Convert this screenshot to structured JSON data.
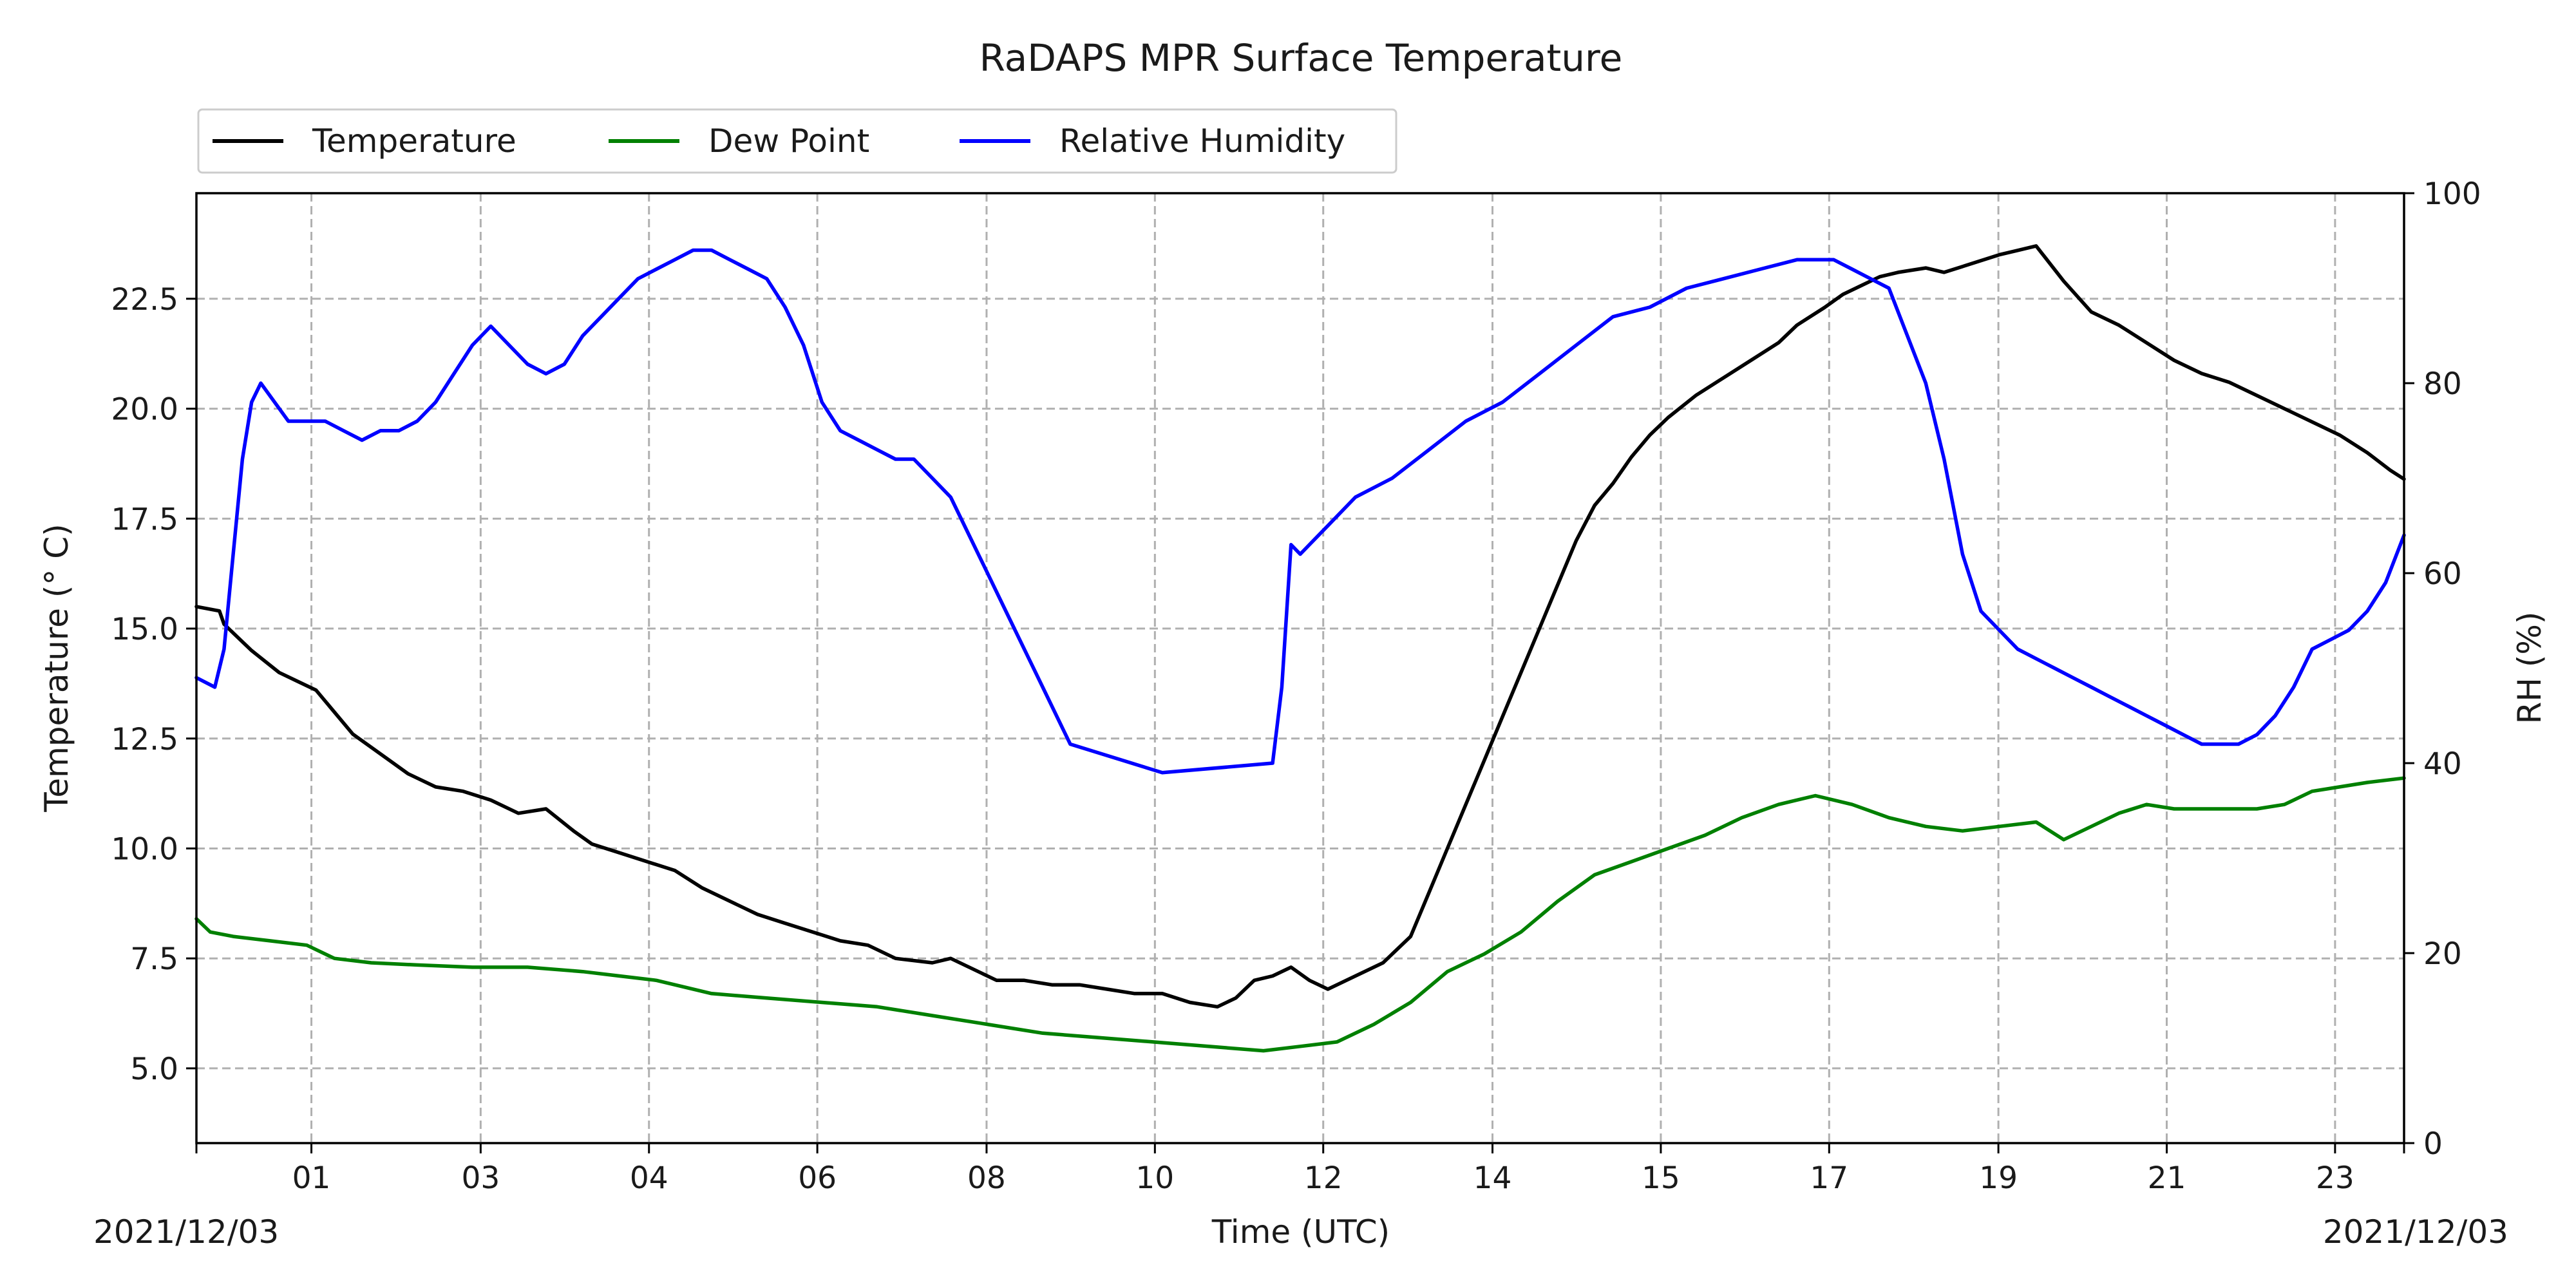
{
  "chart_data": {
    "type": "line",
    "title": "RaDAPS MPR Surface Temperature",
    "xlabel": "Time (UTC)",
    "ylabel_left": "Temperature ($^\\circ$C)",
    "ylabel_left_display": "Temperature (° C)",
    "ylabel_right": "RH (%)",
    "x_start_label": "2021/12/03",
    "x_end_label": "2021/12/03",
    "xlim": [
      0,
      24
    ],
    "ylim_left": [
      3.3,
      24.9
    ],
    "ylim_right": [
      0,
      100
    ],
    "x_ticks": [
      {
        "pos": 1.25,
        "label": "01"
      },
      {
        "pos": 3.09,
        "label": "03"
      },
      {
        "pos": 4.92,
        "label": "04"
      },
      {
        "pos": 6.75,
        "label": "06"
      },
      {
        "pos": 8.59,
        "label": "08"
      },
      {
        "pos": 10.42,
        "label": "10"
      },
      {
        "pos": 12.25,
        "label": "12"
      },
      {
        "pos": 14.09,
        "label": "14"
      },
      {
        "pos": 15.92,
        "label": "15"
      },
      {
        "pos": 17.75,
        "label": "17"
      },
      {
        "pos": 19.59,
        "label": "19"
      },
      {
        "pos": 21.42,
        "label": "21"
      },
      {
        "pos": 23.25,
        "label": "23"
      }
    ],
    "y_left_ticks": [
      "5.0",
      "7.5",
      "10.0",
      "12.5",
      "15.0",
      "17.5",
      "20.0",
      "22.5"
    ],
    "y_right_ticks": [
      "0",
      "20",
      "40",
      "60",
      "80",
      "100"
    ],
    "grid": true,
    "legend_position": "top-left, above plot",
    "series": [
      {
        "name": "Temperature",
        "axis": "left",
        "color": "#000000",
        "x": [
          0.0,
          0.25,
          0.3,
          0.4,
          0.6,
          0.9,
          1.1,
          1.3,
          1.5,
          1.7,
          1.9,
          2.1,
          2.3,
          2.6,
          2.9,
          3.2,
          3.5,
          3.8,
          4.1,
          4.3,
          4.6,
          4.9,
          5.2,
          5.5,
          5.8,
          6.1,
          6.4,
          6.7,
          7.0,
          7.3,
          7.6,
          8.0,
          8.2,
          8.5,
          8.7,
          9.0,
          9.3,
          9.6,
          9.9,
          10.2,
          10.5,
          10.8,
          11.1,
          11.3,
          11.5,
          11.7,
          11.9,
          12.1,
          12.3,
          12.6,
          12.9,
          13.2,
          13.4,
          13.6,
          13.8,
          14.0,
          14.2,
          14.4,
          14.6,
          14.8,
          15.0,
          15.2,
          15.4,
          15.6,
          15.8,
          16.0,
          16.3,
          16.6,
          16.9,
          17.2,
          17.4,
          17.7,
          17.9,
          18.1,
          18.3,
          18.5,
          18.8,
          19.0,
          19.3,
          19.6,
          19.8,
          20.0,
          20.3,
          20.6,
          20.9,
          21.2,
          21.5,
          21.8,
          22.1,
          22.4,
          22.7,
          23.0,
          23.3,
          23.6,
          23.85,
          24.0
        ],
        "y": [
          15.5,
          15.4,
          15.1,
          14.9,
          14.5,
          14.0,
          13.8,
          13.6,
          13.1,
          12.6,
          12.3,
          12.0,
          11.7,
          11.4,
          11.3,
          11.1,
          10.8,
          10.9,
          10.4,
          10.1,
          9.9,
          9.7,
          9.5,
          9.1,
          8.8,
          8.5,
          8.3,
          8.1,
          7.9,
          7.8,
          7.5,
          7.4,
          7.5,
          7.2,
          7.0,
          7.0,
          6.9,
          6.9,
          6.8,
          6.7,
          6.7,
          6.5,
          6.4,
          6.6,
          7.0,
          7.1,
          7.3,
          7.0,
          6.8,
          7.1,
          7.4,
          8.0,
          9.0,
          10.0,
          11.0,
          12.0,
          13.0,
          14.0,
          15.0,
          16.0,
          17.0,
          17.8,
          18.3,
          18.9,
          19.4,
          19.8,
          20.3,
          20.7,
          21.1,
          21.5,
          21.9,
          22.3,
          22.6,
          22.8,
          23.0,
          23.1,
          23.2,
          23.1,
          23.3,
          23.5,
          23.6,
          23.7,
          22.9,
          22.2,
          21.9,
          21.5,
          21.1,
          20.8,
          20.6,
          20.3,
          20.0,
          19.7,
          19.4,
          19.0,
          18.6,
          18.4
        ]
      },
      {
        "name": "Dew Point",
        "axis": "left",
        "color": "#008000",
        "x": [
          0.0,
          0.15,
          0.4,
          0.8,
          1.2,
          1.5,
          1.9,
          2.4,
          3.0,
          3.6,
          4.2,
          4.6,
          5.0,
          5.6,
          6.2,
          6.8,
          7.4,
          8.0,
          8.6,
          9.2,
          9.8,
          10.4,
          11.0,
          11.6,
          12.0,
          12.4,
          12.8,
          13.2,
          13.6,
          14.0,
          14.4,
          14.8,
          15.2,
          15.6,
          16.0,
          16.4,
          16.8,
          17.2,
          17.6,
          18.0,
          18.4,
          18.8,
          19.2,
          19.6,
          20.0,
          20.3,
          20.6,
          20.9,
          21.2,
          21.5,
          21.8,
          22.1,
          22.4,
          22.7,
          23.0,
          23.3,
          23.6,
          24.0
        ],
        "y": [
          8.4,
          8.1,
          8.0,
          7.9,
          7.8,
          7.5,
          7.4,
          7.35,
          7.3,
          7.3,
          7.2,
          7.1,
          7.0,
          6.7,
          6.6,
          6.5,
          6.4,
          6.2,
          6.0,
          5.8,
          5.7,
          5.6,
          5.5,
          5.4,
          5.5,
          5.6,
          6.0,
          6.5,
          7.2,
          7.6,
          8.1,
          8.8,
          9.4,
          9.7,
          10.0,
          10.3,
          10.7,
          11.0,
          11.2,
          11.0,
          10.7,
          10.5,
          10.4,
          10.5,
          10.6,
          10.2,
          10.5,
          10.8,
          11.0,
          10.9,
          10.9,
          10.9,
          10.9,
          11.0,
          11.3,
          11.4,
          11.5,
          11.6
        ]
      },
      {
        "name": "Relative Humidity",
        "axis": "right",
        "color": "#0000ff",
        "x": [
          0.0,
          0.2,
          0.3,
          0.4,
          0.5,
          0.6,
          0.7,
          0.85,
          1.0,
          1.2,
          1.4,
          1.6,
          1.8,
          2.0,
          2.2,
          2.4,
          2.6,
          2.8,
          3.0,
          3.2,
          3.4,
          3.6,
          3.8,
          4.0,
          4.2,
          4.4,
          4.6,
          4.8,
          5.0,
          5.2,
          5.4,
          5.6,
          5.8,
          6.0,
          6.2,
          6.4,
          6.6,
          6.8,
          7.0,
          7.2,
          7.4,
          7.6,
          7.8,
          8.0,
          8.2,
          8.4,
          8.6,
          8.8,
          9.0,
          9.2,
          9.4,
          9.5,
          10.5,
          11.7,
          11.8,
          11.9,
          12.0,
          12.3,
          12.6,
          13.0,
          13.4,
          13.8,
          14.2,
          14.6,
          15.0,
          15.4,
          15.8,
          16.2,
          16.6,
          17.0,
          17.4,
          17.6,
          17.8,
          18.0,
          18.2,
          18.4,
          18.6,
          18.8,
          19.0,
          19.2,
          19.4,
          19.6,
          19.8,
          20.0,
          20.2,
          20.4,
          20.6,
          20.8,
          21.0,
          21.2,
          21.4,
          21.6,
          21.8,
          22.0,
          22.2,
          22.4,
          22.6,
          22.8,
          23.0,
          23.2,
          23.4,
          23.6,
          23.8,
          24.0
        ],
        "y": [
          49,
          48,
          52,
          62,
          72,
          78,
          80,
          78,
          76,
          76,
          76,
          75,
          74,
          75,
          75,
          76,
          78,
          81,
          84,
          86,
          84,
          82,
          81,
          82,
          85,
          87,
          89,
          91,
          92,
          93,
          94,
          94,
          93,
          92,
          91,
          88,
          84,
          78,
          75,
          74,
          73,
          72,
          72,
          70,
          68,
          64,
          60,
          56,
          52,
          48,
          44,
          42,
          39,
          40,
          48,
          63,
          62,
          65,
          68,
          70,
          73,
          76,
          78,
          81,
          84,
          87,
          88,
          90,
          91,
          92,
          93,
          93,
          93,
          92,
          91,
          90,
          85,
          80,
          72,
          62,
          56,
          54,
          52,
          51,
          50,
          49,
          48,
          47,
          46,
          45,
          44,
          43,
          42,
          42,
          42,
          43,
          45,
          48,
          52,
          53,
          54,
          56,
          59,
          64
        ]
      }
    ]
  }
}
